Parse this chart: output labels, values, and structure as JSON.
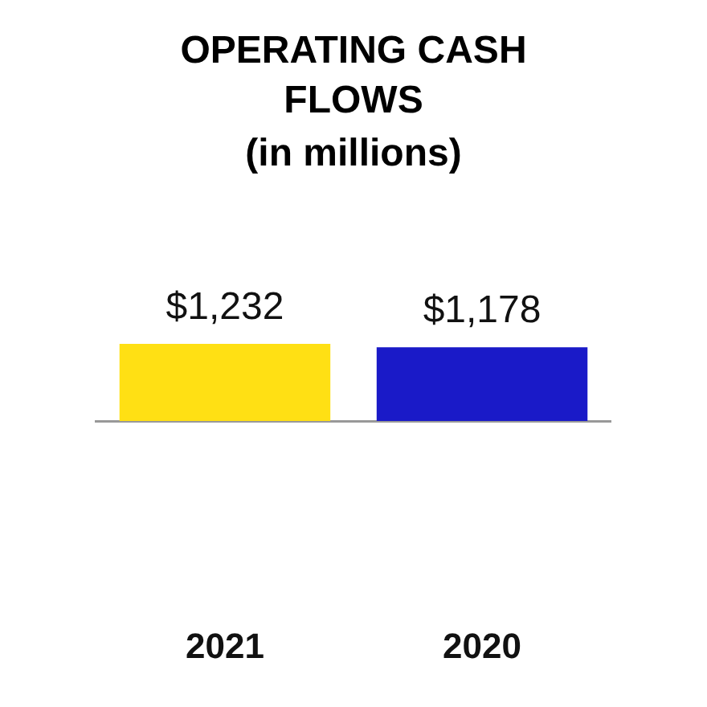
{
  "chart_data": {
    "type": "bar",
    "title": "OPERATING CASH FLOWS",
    "subtitle": "(in millions)",
    "categories": [
      "2021",
      "2020"
    ],
    "values": [
      1232,
      1178
    ],
    "colors": [
      "#ffe014",
      "#1a1ac8"
    ],
    "value_labels": [
      "$1,232",
      "$1,178"
    ]
  }
}
